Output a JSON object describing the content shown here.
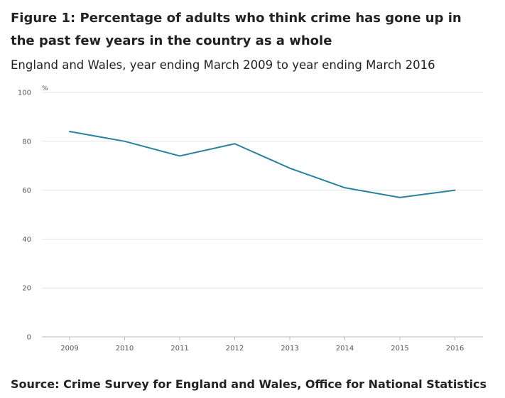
{
  "header": {
    "title": "Figure 1: Percentage of adults who think crime has gone up in the past few years in the country as a whole",
    "subtitle": "England and Wales, year ending March 2009 to year ending March 2016"
  },
  "footer": {
    "source": "Source: Crime Survey for England and Wales, Office for National Statistics"
  },
  "chart_data": {
    "type": "line",
    "title": "Figure 1: Percentage of adults who think crime has gone up in the past few years in the country as a whole",
    "subtitle": "England and Wales, year ending March 2009 to year ending March 2016",
    "xlabel": "",
    "ylabel": "",
    "unit_label": "%",
    "categories": [
      "2009",
      "2010",
      "2011",
      "2012",
      "2013",
      "2014",
      "2015",
      "2016"
    ],
    "series": [
      {
        "values": [
          84,
          80,
          74,
          79,
          69,
          61,
          57,
          60
        ],
        "color": "#27819f"
      }
    ],
    "ylim": [
      0,
      100
    ],
    "yticks": [
      0,
      20,
      40,
      60,
      80,
      100
    ],
    "grid": true,
    "legend": "none"
  }
}
